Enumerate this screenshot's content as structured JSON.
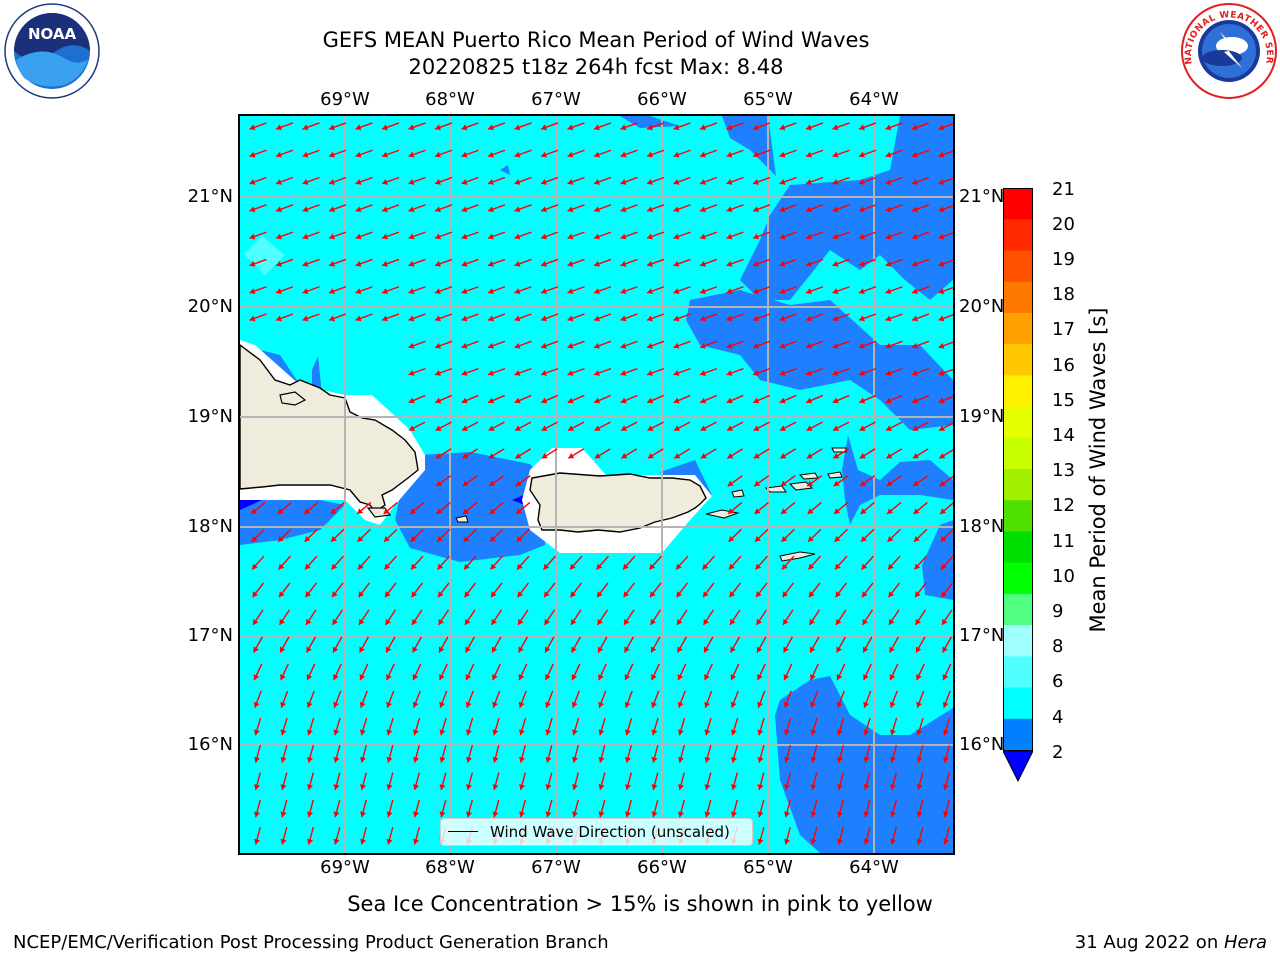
{
  "title": {
    "line1": "GEFS MEAN Puerto Rico Mean Period of Wind Waves",
    "line2": "20220825 t18z 264h fcst   Max: 8.48"
  },
  "axes": {
    "lon_ticks": [
      "69°W",
      "68°W",
      "67°W",
      "66°W",
      "65°W",
      "64°W"
    ],
    "lat_ticks": [
      "21°N",
      "20°N",
      "19°N",
      "18°N",
      "17°N",
      "16°N"
    ]
  },
  "legend": {
    "label": "Wind Wave Direction (unscaled)"
  },
  "colorbar": {
    "label": "Mean Period of Wind Waves [s]",
    "ticks": [
      "21",
      "20",
      "19",
      "18",
      "17",
      "16",
      "15",
      "14",
      "13",
      "12",
      "11",
      "10",
      "9",
      "8",
      "6",
      "4",
      "2"
    ],
    "colors": [
      "#ff0000",
      "#ff2800",
      "#ff5000",
      "#ff7800",
      "#ffa000",
      "#ffc800",
      "#fff000",
      "#e6ff00",
      "#c8ff00",
      "#a0f000",
      "#50e000",
      "#00e000",
      "#00ff00",
      "#50ff80",
      "#a0ffff",
      "#50ffff",
      "#00ffff",
      "#0080ff",
      "#0000ff"
    ]
  },
  "footnote": "Sea Ice Concentration > 15% is shown in pink to yellow",
  "footer": {
    "left": "NCEP/EMC/Verification Post Processing Product Generation Branch",
    "right_date": "31 Aug 2022 on ",
    "right_host": "Hera"
  },
  "logos": {
    "left_name": "NOAA",
    "right_name": "NATIONAL WEATHER SERVICE"
  },
  "map_colors": {
    "ocean_4_6": "#00ffff",
    "ocean_2_4": "#1e80ff",
    "ocean_lt2": "#0000ff",
    "land": "#efecdc",
    "arrows": "#ff0000",
    "grid": "#b4b4b4"
  }
}
